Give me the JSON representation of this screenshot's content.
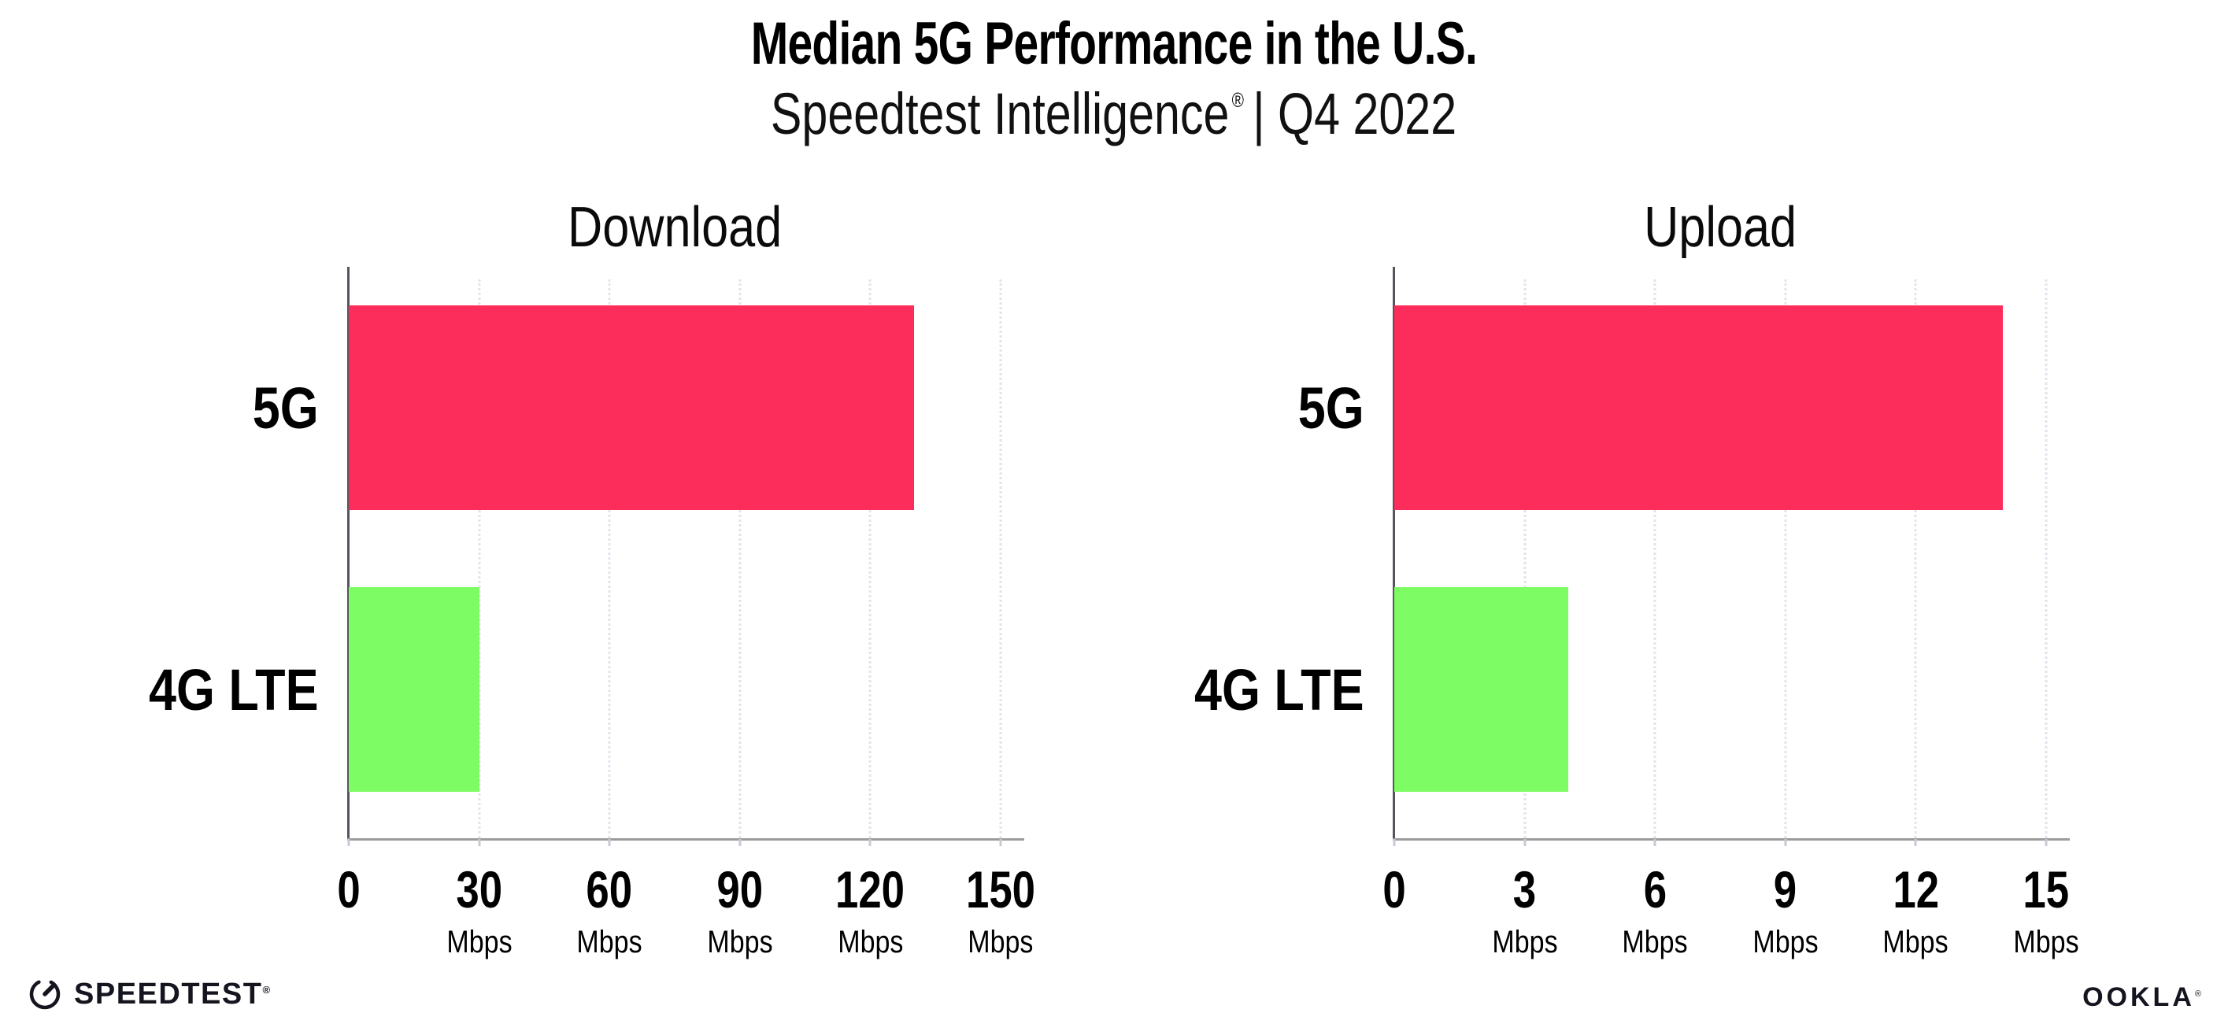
{
  "title": "Median 5G Performance in the U.S.",
  "subtitle": {
    "brand": "Speedtest Intelligence",
    "registered_mark": "®",
    "suffix": "| Q4 2022"
  },
  "footer": {
    "speedtest_wordmark": "SPEEDTEST",
    "speedtest_registered_mark": "®",
    "speedtest_icon": "speedtest-gauge-icon",
    "ookla_wordmark": "OOKLA",
    "ookla_registered_mark": "®"
  },
  "colors": {
    "bar_5g": "#FC2D5A",
    "bar_4g_lte": "#7DFC64",
    "gridline": "#E3E3ED",
    "x_axis": "#9B9B9B",
    "y_axis": "#55555D",
    "logo_text": "#15151F"
  },
  "chart_data": [
    {
      "type": "bar",
      "orientation": "horizontal",
      "title": "Download",
      "categories": [
        "5G",
        "4G LTE"
      ],
      "values": [
        130,
        30
      ],
      "unit": "Mbps",
      "xlim": [
        0,
        150
      ],
      "xticks": [
        0,
        30,
        60,
        90,
        120,
        150
      ],
      "grid": "vertical-dotted",
      "legend": false,
      "bar_colors": [
        "#FC2D5A",
        "#7DFC64"
      ]
    },
    {
      "type": "bar",
      "orientation": "horizontal",
      "title": "Upload",
      "categories": [
        "5G",
        "4G LTE"
      ],
      "values": [
        14,
        4
      ],
      "unit": "Mbps",
      "xlim": [
        0,
        15
      ],
      "xticks": [
        0,
        3,
        6,
        9,
        12,
        15
      ],
      "grid": "vertical-dotted",
      "legend": false,
      "bar_colors": [
        "#FC2D5A",
        "#7DFC64"
      ]
    }
  ]
}
